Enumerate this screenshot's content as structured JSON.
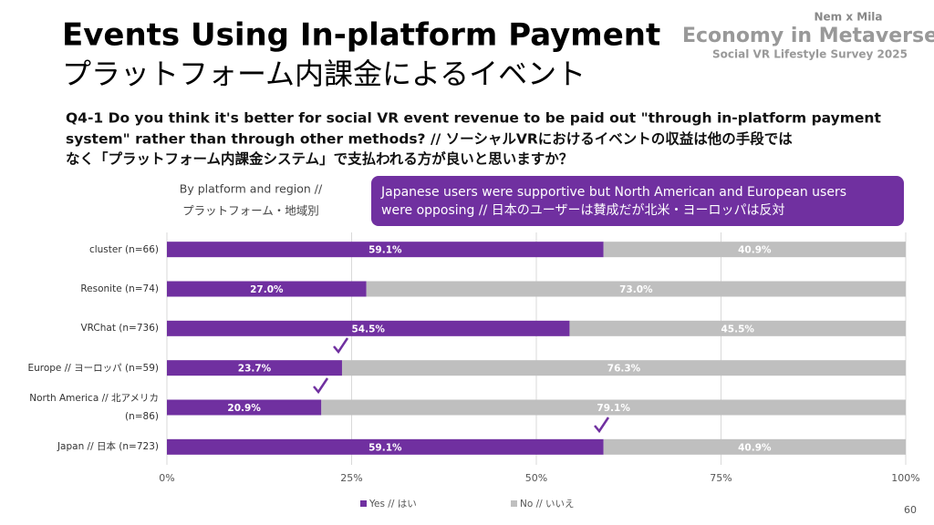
{
  "header": {
    "title": "Events Using In-platform Payment",
    "title_ja": "プラットフォーム内課金によるイベント",
    "question": [
      "Q4-1 Do you think it's better for social VR event revenue to be paid out \"through in-platform payment",
      "system\" rather than through other methods? // ソーシャルVRにおけるイベントの収益は他の手段では",
      "なく「プラットフォーム内課金システム」で支払われる方が良いと思いますか？"
    ],
    "brand_top": "Nem x Mila",
    "brand_main": "Economy in Metaverse",
    "brand_sub": "Social VR Lifestyle Survey 2025",
    "page_number": "60"
  },
  "chart_data": {
    "type": "stacked-bar-horizontal",
    "subtitle": [
      "By platform and region //",
      "プラットフォーム・地域別"
    ],
    "annotation": [
      "Japanese users were supportive but North American and European users",
      "were opposing // 日本のユーザーは賛成だが北米・ヨーロッパは反対"
    ],
    "categories": [
      "cluster (n=66)",
      "Resonite (n=74)",
      "VRChat (n=736)",
      "Europe // ヨーロッパ (n=59)",
      "North America // 北アメリカ (n=86)",
      "Japan // 日本 (n=723)"
    ],
    "series": [
      {
        "name": "Yes // はい",
        "color": "#7030a0",
        "values": [
          59.1,
          27.0,
          54.5,
          23.7,
          20.9,
          59.1
        ],
        "value_labels": [
          "59.1%",
          "27.0%",
          "54.5%",
          "23.7%",
          "20.9%",
          "59.1%"
        ]
      },
      {
        "name": "No // いいえ",
        "color": "#bfbfbf",
        "values": [
          40.9,
          73.0,
          45.5,
          76.3,
          79.1,
          40.9
        ],
        "value_labels": [
          "40.9%",
          "73.0%",
          "45.5%",
          "76.3%",
          "79.1%",
          "40.9%"
        ]
      }
    ],
    "xlim": [
      0,
      100
    ],
    "xticks": [
      {
        "value": 0,
        "label": "0%"
      },
      {
        "value": 25,
        "label": "25%"
      },
      {
        "value": 50,
        "label": "50%"
      },
      {
        "value": 75,
        "label": "75%"
      },
      {
        "value": 100,
        "label": "100%"
      }
    ],
    "grid": true,
    "legend": "bottom"
  }
}
